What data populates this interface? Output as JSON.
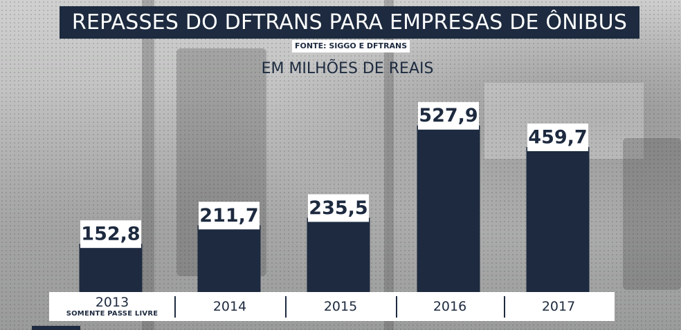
{
  "title": "REPASSES DO DFTRANS PARA EMPRESAS DE ÔNIBUS",
  "source": "FONTE: SIGGO E DFTRANS",
  "unit": "EM MILHÕES DE REAIS",
  "colors": {
    "bar": "#1d2a3f",
    "label_bg": "#ffffff",
    "text": "#1d2a3f"
  },
  "chart_data": {
    "type": "bar",
    "title": "REPASSES DO DFTRANS PARA EMPRESAS DE ÔNIBUS",
    "ylabel": "EM MILHÕES DE REAIS",
    "xlabel": "",
    "categories": [
      "2013",
      "2014",
      "2015",
      "2016",
      "2017"
    ],
    "category_notes": [
      "SOMENTE PASSE LIVRE",
      "",
      "",
      "",
      ""
    ],
    "values": [
      152.8,
      211.7,
      235.5,
      527.9,
      459.7
    ],
    "value_labels": [
      "152,8",
      "211,7",
      "235,5",
      "527,9",
      "459,7"
    ],
    "ylim": [
      0,
      600
    ],
    "grid": false,
    "legend": "none"
  }
}
